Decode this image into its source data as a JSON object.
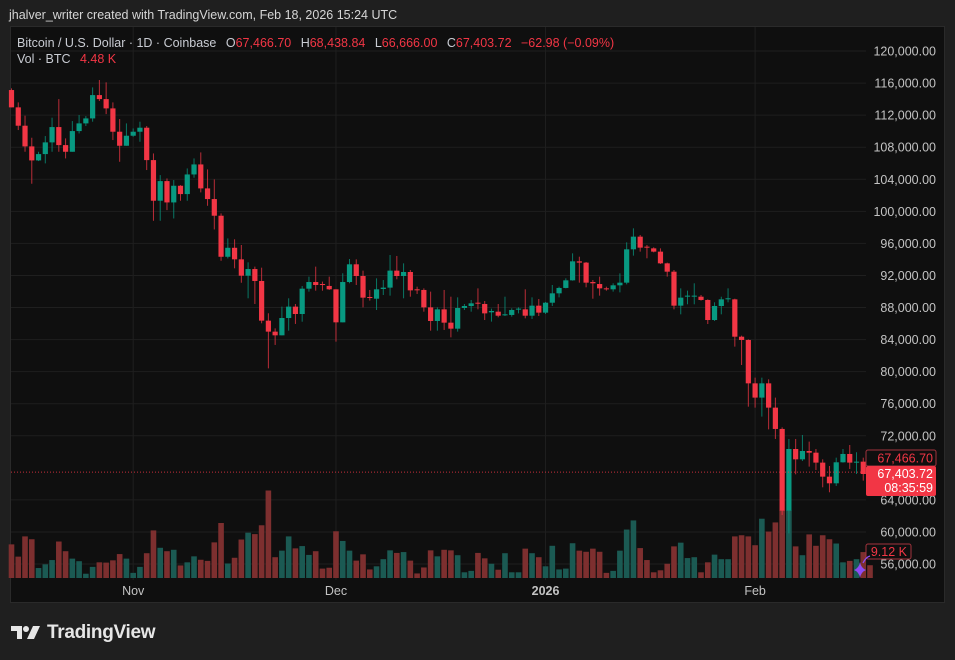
{
  "credit": "jhalver_writer created with TradingView.com, Feb 18, 2026 15:24 UTC",
  "legend": {
    "symbol": "Bitcoin / U.S. Dollar · 1D · Coinbase",
    "o_label": "O",
    "o": "67,466.70",
    "h_label": "H",
    "h": "68,438.84",
    "l_label": "L",
    "l": "66,666.00",
    "c_label": "C",
    "c": "67,403.72",
    "change": "−62.98 (−0.09%)",
    "vol_label": "Vol · BTC",
    "vol": "4.48 K"
  },
  "price_labels": {
    "open_tag": "67,466.70",
    "last_tag": "67,403.72",
    "countdown": "08:35:59",
    "volume_tag": "9.12 K"
  },
  "logo": "TradingView",
  "colors": {
    "up": "#089981",
    "down": "#f23645",
    "up_volume": "#1b5a53",
    "down_volume": "#7d2f2f",
    "alert_marker": "#8e4cf5"
  },
  "chart_data": {
    "type": "candlestick",
    "symbol": "Bitcoin / U.S. Dollar",
    "interval": "1D",
    "y_unit": "USD",
    "ylim": [
      54000,
      123000
    ],
    "y_ticks": [
      "120,000.00",
      "116,000.00",
      "112,000.00",
      "108,000.00",
      "104,000.00",
      "100,000.00",
      "96,000.00",
      "92,000.00",
      "88,000.00",
      "84,000.00",
      "80,000.00",
      "76,000.00",
      "72,000.00",
      "64,000.00",
      "60,000.00",
      "56,000.00"
    ],
    "y_tick_values": [
      120000,
      116000,
      112000,
      108000,
      104000,
      100000,
      96000,
      92000,
      88000,
      84000,
      80000,
      76000,
      72000,
      64000,
      60000,
      56000
    ],
    "x_ticks": [
      {
        "label": "Nov",
        "index": 18,
        "bold": false
      },
      {
        "label": "Dec",
        "index": 48,
        "bold": false
      },
      {
        "label": "2026",
        "index": 79,
        "bold": true
      },
      {
        "label": "Feb",
        "index": 110,
        "bold": false
      }
    ],
    "grid": true,
    "last_date": "Feb 18, 2026",
    "ohlc": [
      [
        115130,
        115340,
        112970,
        112970
      ],
      [
        112970,
        113590,
        110140,
        110680
      ],
      [
        110680,
        111930,
        107430,
        108100
      ],
      [
        108100,
        109180,
        103440,
        106350
      ],
      [
        106350,
        107430,
        106270,
        107140
      ],
      [
        107140,
        109390,
        105980,
        108600
      ],
      [
        108600,
        111680,
        107430,
        110510
      ],
      [
        110510,
        114000,
        107430,
        108260
      ],
      [
        108260,
        109100,
        106600,
        107430
      ],
      [
        107430,
        111260,
        107430,
        110010
      ],
      [
        110010,
        112010,
        109720,
        110970
      ],
      [
        110970,
        111880,
        110640,
        111590
      ],
      [
        111590,
        115460,
        111180,
        114500
      ],
      [
        114500,
        116380,
        113760,
        114000
      ],
      [
        114000,
        116090,
        112130,
        112840
      ],
      [
        112840,
        113590,
        108890,
        109930
      ],
      [
        109930,
        111510,
        106180,
        108180
      ],
      [
        108180,
        110970,
        108180,
        109430
      ],
      [
        109430,
        110340,
        109300,
        109930
      ],
      [
        109930,
        111180,
        108680,
        110430
      ],
      [
        110430,
        110640,
        105150,
        106390
      ],
      [
        106390,
        107220,
        98820,
        101320
      ],
      [
        101320,
        104520,
        98820,
        103770
      ],
      [
        103770,
        104100,
        100150,
        101110
      ],
      [
        101110,
        103900,
        99110,
        103190
      ],
      [
        103190,
        103270,
        101320,
        102150
      ],
      [
        102150,
        105350,
        101320,
        104600
      ],
      [
        104600,
        106600,
        104190,
        105850
      ],
      [
        105850,
        107350,
        102360,
        102860
      ],
      [
        102860,
        105230,
        100690,
        101530
      ],
      [
        101530,
        103980,
        97740,
        99450
      ],
      [
        99450,
        99740,
        93830,
        94330
      ],
      [
        94330,
        96620,
        94120,
        95450
      ],
      [
        95450,
        96510,
        92890,
        94010
      ],
      [
        94010,
        95800,
        91090,
        91970
      ],
      [
        91970,
        93640,
        89150,
        92800
      ],
      [
        92800,
        93100,
        88440,
        91310
      ],
      [
        91310,
        92970,
        86030,
        86360
      ],
      [
        86360,
        87280,
        80410,
        84990
      ],
      [
        84990,
        85400,
        83330,
        84530
      ],
      [
        84530,
        88110,
        84530,
        86690
      ],
      [
        86690,
        89150,
        85110,
        88110
      ],
      [
        88110,
        88440,
        85950,
        87190
      ],
      [
        87190,
        90680,
        86230,
        90350
      ],
      [
        90350,
        91850,
        89980,
        91180
      ],
      [
        91180,
        93100,
        90100,
        90810
      ],
      [
        90930,
        91230,
        90100,
        90810
      ],
      [
        90690,
        91850,
        90190,
        90270
      ],
      [
        90270,
        90270,
        83740,
        86150
      ],
      [
        86150,
        92270,
        86150,
        91180
      ],
      [
        91180,
        94050,
        91020,
        93390
      ],
      [
        93390,
        94010,
        90810,
        91930
      ],
      [
        91930,
        92600,
        88020,
        89230
      ],
      [
        89310,
        90190,
        88860,
        89230
      ],
      [
        89100,
        91640,
        87690,
        90270
      ],
      [
        90310,
        91430,
        89560,
        90480
      ],
      [
        90480,
        94550,
        89480,
        92600
      ],
      [
        92600,
        94430,
        91520,
        91930
      ],
      [
        91930,
        93510,
        89150,
        92430
      ],
      [
        92430,
        92680,
        89350,
        90140
      ],
      [
        90270,
        90600,
        89690,
        90190
      ],
      [
        90190,
        90390,
        87480,
        88020
      ],
      [
        88020,
        89980,
        85110,
        86320
      ],
      [
        86320,
        88020,
        85110,
        87770
      ],
      [
        87770,
        90190,
        85200,
        86110
      ],
      [
        86110,
        89350,
        84280,
        85360
      ],
      [
        85360,
        89270,
        84990,
        87940
      ],
      [
        87940,
        88440,
        87690,
        88190
      ],
      [
        88190,
        88940,
        87480,
        88520
      ],
      [
        88600,
        90390,
        87770,
        88520
      ],
      [
        88440,
        88810,
        86440,
        87270
      ],
      [
        87400,
        87860,
        86240,
        87570
      ],
      [
        87480,
        88440,
        86780,
        86980
      ],
      [
        87070,
        89350,
        86940,
        87150
      ],
      [
        87070,
        87900,
        86860,
        87690
      ],
      [
        87770,
        88020,
        87270,
        87860
      ],
      [
        87770,
        90270,
        86650,
        86980
      ],
      [
        86980,
        89270,
        86570,
        88230
      ],
      [
        88230,
        89060,
        86940,
        87360
      ],
      [
        87360,
        88690,
        87190,
        88600
      ],
      [
        88600,
        90810,
        88190,
        89770
      ],
      [
        89770,
        90600,
        89270,
        90440
      ],
      [
        90440,
        91640,
        90390,
        91390
      ],
      [
        91390,
        94760,
        91350,
        93760
      ],
      [
        93760,
        94340,
        91100,
        93600
      ],
      [
        93600,
        93680,
        90520,
        91100
      ],
      [
        91180,
        91430,
        89100,
        91020
      ],
      [
        90930,
        91850,
        89480,
        90390
      ],
      [
        90390,
        90600,
        90100,
        90270
      ],
      [
        90270,
        91020,
        89980,
        90770
      ],
      [
        90770,
        92260,
        89890,
        91100
      ],
      [
        91100,
        96130,
        90890,
        95260
      ],
      [
        95260,
        97880,
        94470,
        96840
      ],
      [
        96840,
        97050,
        94970,
        95470
      ],
      [
        95590,
        95800,
        94140,
        95510
      ],
      [
        95380,
        95510,
        94880,
        94970
      ],
      [
        94970,
        95380,
        93430,
        93510
      ],
      [
        93510,
        93600,
        91850,
        92470
      ],
      [
        92470,
        92680,
        87770,
        88230
      ],
      [
        88230,
        90390,
        87150,
        89230
      ],
      [
        89400,
        90100,
        88400,
        89480
      ],
      [
        89440,
        91020,
        88400,
        89480
      ],
      [
        89350,
        89560,
        88860,
        88940
      ],
      [
        88940,
        89020,
        85940,
        86440
      ],
      [
        86440,
        88650,
        86320,
        88190
      ],
      [
        88190,
        89350,
        87150,
        89020
      ],
      [
        89060,
        90390,
        88650,
        89150
      ],
      [
        89020,
        89100,
        83120,
        84360
      ],
      [
        84360,
        84490,
        80830,
        83950
      ],
      [
        83950,
        84030,
        75630,
        78540
      ],
      [
        78540,
        79250,
        75510,
        76760
      ],
      [
        76760,
        79250,
        74390,
        78540
      ],
      [
        78540,
        79040,
        72800,
        75510
      ],
      [
        75510,
        76760,
        71600,
        72850
      ],
      [
        72850,
        73050,
        62120,
        62660
      ],
      [
        62660,
        71600,
        59830,
        70350
      ],
      [
        70350,
        71600,
        67190,
        69060
      ],
      [
        69060,
        72100,
        68850,
        70100
      ],
      [
        70100,
        71270,
        68150,
        69890
      ],
      [
        69890,
        70350,
        67730,
        68650
      ],
      [
        68650,
        69060,
        65570,
        66900
      ],
      [
        66900,
        68230,
        64950,
        66070
      ],
      [
        66070,
        69270,
        65740,
        68690
      ],
      [
        68690,
        70350,
        68650,
        69730
      ],
      [
        69730,
        70850,
        67860,
        68650
      ],
      [
        68650,
        69940,
        67230,
        68770
      ],
      [
        68770,
        69270,
        66400,
        67230
      ],
      [
        67466.7,
        68438.84,
        66666.0,
        67403.72
      ]
    ],
    "volume_unit": "K BTC",
    "volume": [
      11.8,
      7.5,
      14.6,
      13.6,
      3.5,
      4.8,
      6.3,
      12.8,
      9.4,
      6.8,
      5.9,
      1.5,
      3.9,
      5.5,
      5.4,
      6.2,
      8.4,
      6.8,
      1.8,
      3.9,
      8.7,
      16.7,
      10.6,
      9.4,
      9.9,
      4.4,
      5.5,
      7.6,
      6.4,
      6.0,
      12.5,
      19.3,
      5.1,
      7.1,
      13.5,
      15.9,
      15.4,
      18.5,
      30.7,
      7.3,
      9.6,
      14.6,
      10.4,
      11.2,
      8.1,
      9.4,
      3.3,
      3.6,
      16.4,
      13.0,
      9.6,
      6.1,
      8.3,
      3.0,
      4.1,
      6.6,
      9.7,
      8.8,
      9.1,
      6.1,
      1.6,
      3.7,
      9.7,
      7.6,
      9.9,
      9.7,
      8.0,
      2.0,
      2.5,
      8.8,
      6.9,
      5.0,
      2.9,
      8.7,
      2.0,
      2.0,
      10.3,
      8.7,
      7.3,
      4.1,
      11.3,
      3.0,
      3.3,
      12.2,
      9.6,
      9.2,
      10.3,
      9.2,
      1.8,
      2.5,
      9.6,
      17.0,
      20.2,
      10.5,
      6.3,
      2.0,
      2.7,
      5.0,
      11.1,
      12.4,
      7.0,
      7.3,
      2.0,
      5.5,
      8.2,
      6.6,
      6.6,
      14.6,
      15.0,
      14.6,
      11.5,
      20.8,
      16.3,
      19.5,
      23.8,
      23.8,
      11.1,
      8.0,
      15.3,
      11.3,
      15.0,
      13.6,
      12.1,
      5.5,
      6.0,
      6.6,
      9.1,
      4.48
    ]
  }
}
